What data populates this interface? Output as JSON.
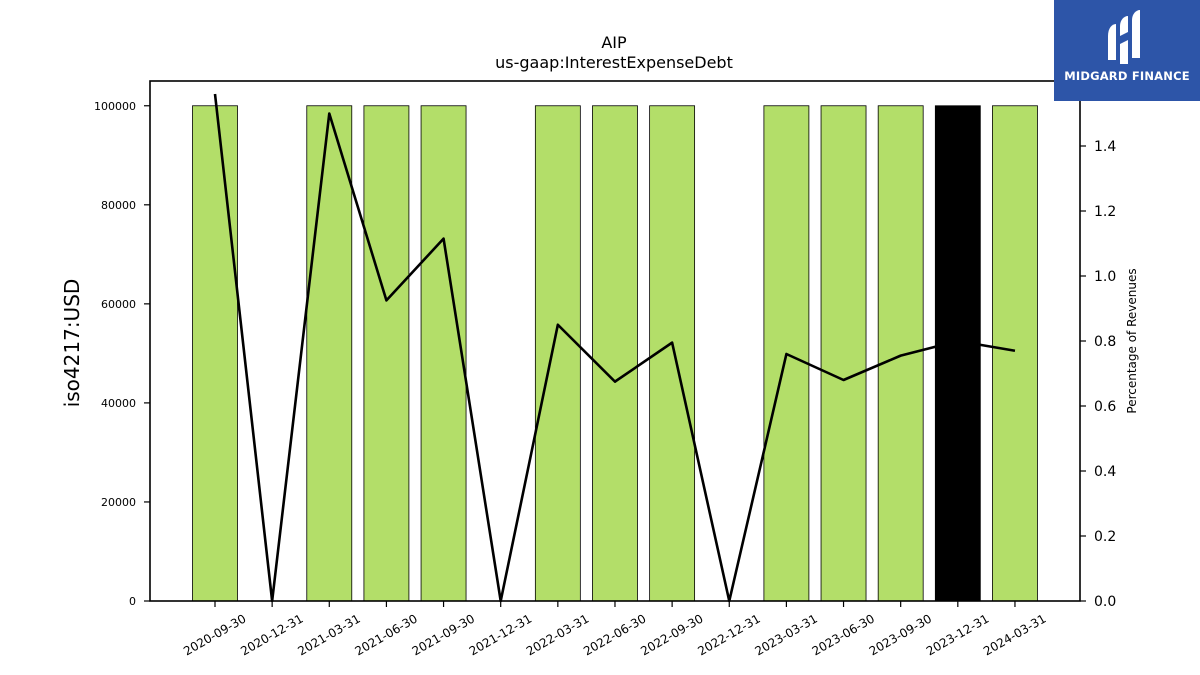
{
  "logo": {
    "text": "MIDGARD FINANCE",
    "icon": "midgard-logo-icon",
    "background": "#2d55a8"
  },
  "chart_data": {
    "type": "bar",
    "title": "AIP",
    "subtitle": "us-gaap:InterestExpenseDebt",
    "ylabel": "iso4217:USD",
    "y2label": "Percentage of Revenues",
    "ylim": [
      0,
      105000
    ],
    "y2lim": [
      0,
      1.6
    ],
    "yticks": [
      0,
      20000,
      40000,
      60000,
      80000,
      100000
    ],
    "y2ticks": [
      "0.0",
      "0.2",
      "0.4",
      "0.6",
      "0.8",
      "1.0",
      "1.2",
      "1.4"
    ],
    "categories": [
      "2020-09-30",
      "2020-12-31",
      "2021-03-31",
      "2021-06-30",
      "2021-09-30",
      "2021-12-31",
      "2022-03-31",
      "2022-06-30",
      "2022-09-30",
      "2022-12-31",
      "2023-03-31",
      "2023-06-30",
      "2023-09-30",
      "2023-12-31",
      "2024-03-31"
    ],
    "series": [
      {
        "type": "bar",
        "axis": "left",
        "values": [
          100000,
          null,
          100000,
          100000,
          100000,
          null,
          100000,
          100000,
          100000,
          null,
          100000,
          100000,
          100000,
          100000,
          100000
        ],
        "colors": [
          "#b3de69",
          "#b3de69",
          "#b3de69",
          "#b3de69",
          "#b3de69",
          "#b3de69",
          "#b3de69",
          "#b3de69",
          "#b3de69",
          "#b3de69",
          "#b3de69",
          "#b3de69",
          "#b3de69",
          "#000000",
          "#b3de69"
        ]
      },
      {
        "type": "line",
        "axis": "right",
        "color": "#000000",
        "values": [
          1.56,
          0.0,
          1.5,
          0.925,
          1.115,
          0.0,
          0.85,
          0.675,
          0.795,
          0.0,
          0.76,
          0.68,
          0.755,
          0.8,
          0.77
        ]
      }
    ],
    "grid": false,
    "legend": "none"
  }
}
